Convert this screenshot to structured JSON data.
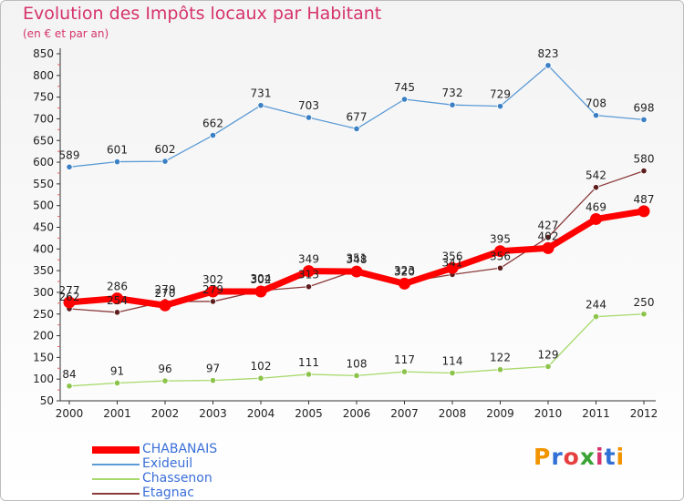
{
  "header": {
    "title": "Evolution des Impôts locaux par Habitant",
    "subtitle": "(en € et par an)"
  },
  "logo": {
    "text": "Proxiti",
    "letter_colors": [
      "#f29400",
      "#2f6fd6",
      "#e63f3f",
      "#3aa335",
      "#d6336c",
      "#2f6fd6",
      "#f29400"
    ]
  },
  "chart_data": {
    "type": "line",
    "categories": [
      "2000",
      "2001",
      "2002",
      "2003",
      "2004",
      "2005",
      "2006",
      "2007",
      "2008",
      "2009",
      "2010",
      "2011",
      "2012"
    ],
    "ylim": [
      50,
      850
    ],
    "yticks": [
      50,
      100,
      150,
      200,
      250,
      300,
      350,
      400,
      450,
      500,
      550,
      600,
      650,
      700,
      750,
      800,
      850
    ],
    "grid": false,
    "legend_position": "bottom-left",
    "series": [
      {
        "name": "Exideuil",
        "color": "#5b9bd5",
        "point_color": "#3b7fc4",
        "width": 1.3,
        "values": [
          589,
          601,
          602,
          662,
          731,
          703,
          677,
          745,
          732,
          729,
          823,
          708,
          698
        ]
      },
      {
        "name": "Chassenon",
        "color": "#a6d96a",
        "point_color": "#8bc34a",
        "width": 1.3,
        "values": [
          84,
          91,
          96,
          97,
          102,
          111,
          108,
          117,
          114,
          122,
          129,
          244,
          250
        ]
      },
      {
        "name": "Etagnac",
        "color": "#8b3a3a",
        "point_color": "#5e1e1e",
        "width": 1.3,
        "values": [
          262,
          254,
          279,
          279,
          304,
          313,
          351,
          323,
          341,
          356,
          427,
          542,
          580
        ]
      },
      {
        "name": "CHABANAIS",
        "color": "#ff0000",
        "point_color": "#ff0000",
        "width": 7,
        "values": [
          277,
          286,
          270,
          302,
          302,
          349,
          348,
          320,
          356,
          395,
          402,
          469,
          487
        ]
      }
    ],
    "legend_order": [
      "CHABANAIS",
      "Exideuil",
      "Chassenon",
      "Etagnac"
    ]
  }
}
